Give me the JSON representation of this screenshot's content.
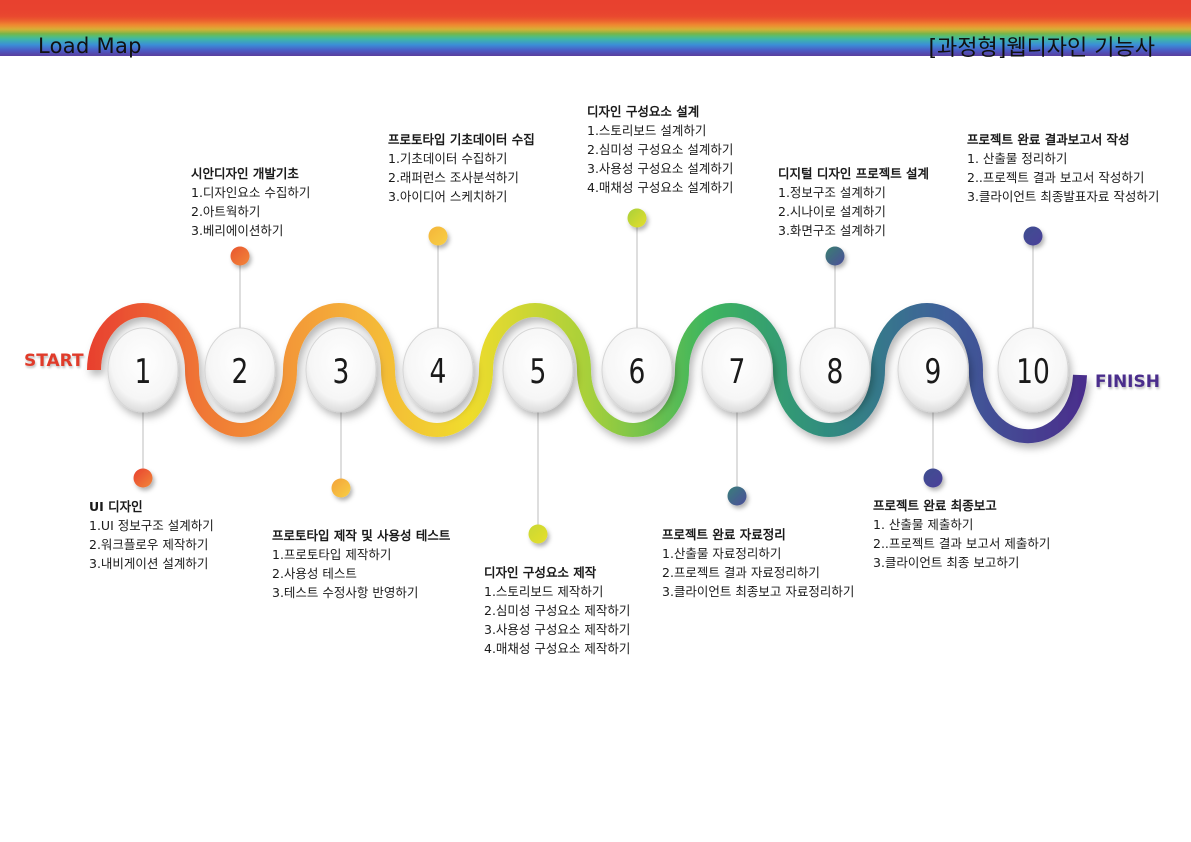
{
  "header": {
    "title": "Load Map",
    "subject": "[과정형]웹디자인 기능사"
  },
  "start_label": "START",
  "finish_label": "FINISH",
  "colors": {
    "red": "#e8412f",
    "orange": "#f39a3a",
    "yellow": "#f0dc2c",
    "green": "#3db55e",
    "teal": "#2f8c7f",
    "blue": "#3f5f9a",
    "purple": "#4a2d8c"
  },
  "steps": [
    {
      "num": "1",
      "title": "UI 디자인",
      "items": [
        "1.UI 정보구조 설계하기",
        "2.워크플로우 제작하기",
        "3.내비게이션 설계하기"
      ]
    },
    {
      "num": "2",
      "title": "시안디자인 개발기초",
      "items": [
        "1.디자인요소 수집하기",
        "2.아트웍하기",
        "3.베리에이션하기"
      ]
    },
    {
      "num": "3",
      "title": "프로토타입 제작 및 사용성 테스트",
      "items": [
        "1.프로토타입 제작하기",
        "2.사용성 테스트",
        "3.테스트 수정사항 반영하기"
      ]
    },
    {
      "num": "4",
      "title": "프로토타입 기초데이터 수집",
      "items": [
        "1.기초데이터 수집하기",
        "2.래퍼런스 조사분석하기",
        "3.아이디어 스케치하기"
      ]
    },
    {
      "num": "5",
      "title": "디자인 구성요소 제작",
      "items": [
        "1.스토리보드 제작하기",
        "2.심미성 구성요소 제작하기",
        "3.사용성 구성요소 제작하기",
        "4.매채성 구성요소 제작하기"
      ]
    },
    {
      "num": "6",
      "title": "디자인 구성요소 설계",
      "items": [
        "1.스토리보드 설계하기",
        "2.심미성 구성요소 설계하기",
        "3.사용성 구성요소 설계하기",
        "4.매채성 구성요소 설계하기"
      ]
    },
    {
      "num": "7",
      "title": "프로젝트 완료 자료정리",
      "items": [
        "1.산출물 자료정리하기",
        "2.프로젝트 결과 자료정리하기",
        "3.클라이언트 최종보고 자료정리하기"
      ]
    },
    {
      "num": "8",
      "title": "디지털 디자인 프로젝트 설계",
      "items": [
        "1.정보구조 설계하기",
        "2.시나이로 설계하기",
        "3.화면구조 설계하기"
      ]
    },
    {
      "num": "9",
      "title": "프로젝트 완료 최종보고",
      "items": [
        "1. 산출물 제출하기",
        "2..프로젝트 결과 보고서 제출하기",
        "3.클라이언트 최종 보고하기"
      ]
    },
    {
      "num": "10",
      "title": "프로젝트 완료 결과보고서 작성",
      "items": [
        "1. 산출물 정리하기",
        "2..프로젝트 결과 보고서 작성하기",
        "3.클라이언트 최종발표자료 작성하기"
      ]
    }
  ]
}
